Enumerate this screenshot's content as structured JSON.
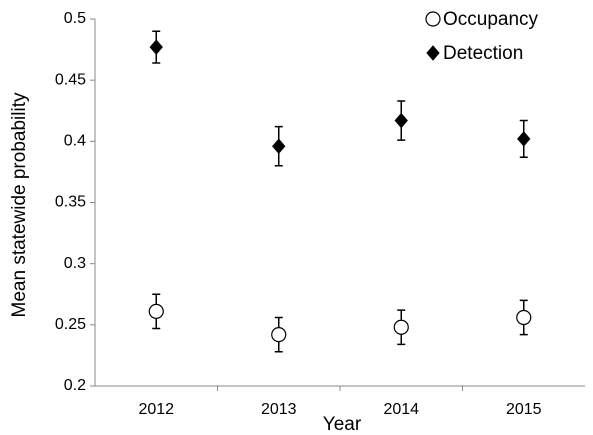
{
  "chart_data": {
    "type": "scatter",
    "xlabel": "Year",
    "ylabel": "Mean statewide probability",
    "categories": [
      "2012",
      "2013",
      "2014",
      "2015"
    ],
    "series": [
      {
        "name": "Occupancy",
        "color": "#ffffff",
        "marker": "circle",
        "values": [
          0.261,
          0.242,
          0.248,
          0.256
        ],
        "errors": [
          0.014,
          0.014,
          0.014,
          0.014
        ]
      },
      {
        "name": "Detection",
        "color": "#000000",
        "marker": "diamond",
        "values": [
          0.477,
          0.396,
          0.417,
          0.402
        ],
        "errors": [
          0.013,
          0.016,
          0.016,
          0.015
        ]
      }
    ],
    "ylim": [
      0.2,
      0.5
    ],
    "yticks": [
      0.2,
      0.25,
      0.3,
      0.35,
      0.4,
      0.45,
      0.5
    ],
    "grid": false,
    "legend": "upper right"
  }
}
